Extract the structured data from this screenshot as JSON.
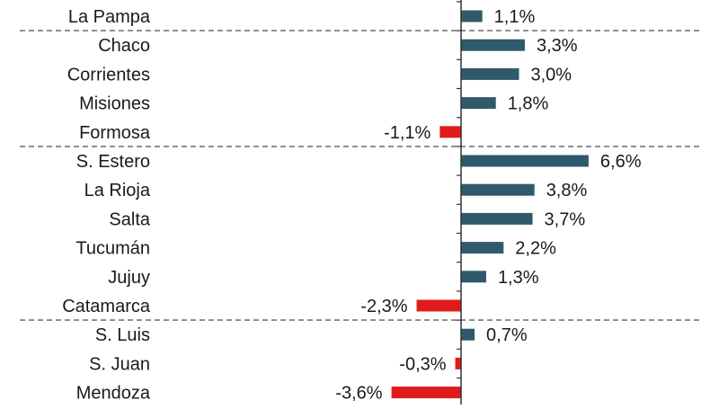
{
  "chart_data": {
    "type": "bar",
    "orientation": "horizontal",
    "title": "",
    "xlabel": "",
    "ylabel": "",
    "categories": [
      "La Pampa",
      "Chaco",
      "Corrientes",
      "Misiones",
      "Formosa",
      "S. Estero",
      "La Rioja",
      "Salta",
      "Tucumán",
      "Jujuy",
      "Catamarca",
      "S. Luis",
      "S. Juan",
      "Mendoza"
    ],
    "values": [
      1.1,
      3.3,
      3.0,
      1.8,
      -1.1,
      6.6,
      3.8,
      3.7,
      2.2,
      1.3,
      -2.3,
      0.7,
      -0.3,
      -3.6
    ],
    "value_labels": [
      "1,1%",
      "3,3%",
      "3,0%",
      "1,8%",
      "-1,1%",
      "6,6%",
      "3,8%",
      "3,7%",
      "2,2%",
      "1,3%",
      "-2,3%",
      "0,7%",
      "-0,3%",
      "-3,6%"
    ],
    "unit": "%",
    "groups_separated_after": [
      "La Pampa",
      "Formosa",
      "Catamarca"
    ],
    "colors": {
      "positive": "#2e5a6b",
      "negative": "#e01b1b",
      "axis": "#333333",
      "separator": "#777777"
    },
    "grid": false,
    "legend": "none"
  }
}
